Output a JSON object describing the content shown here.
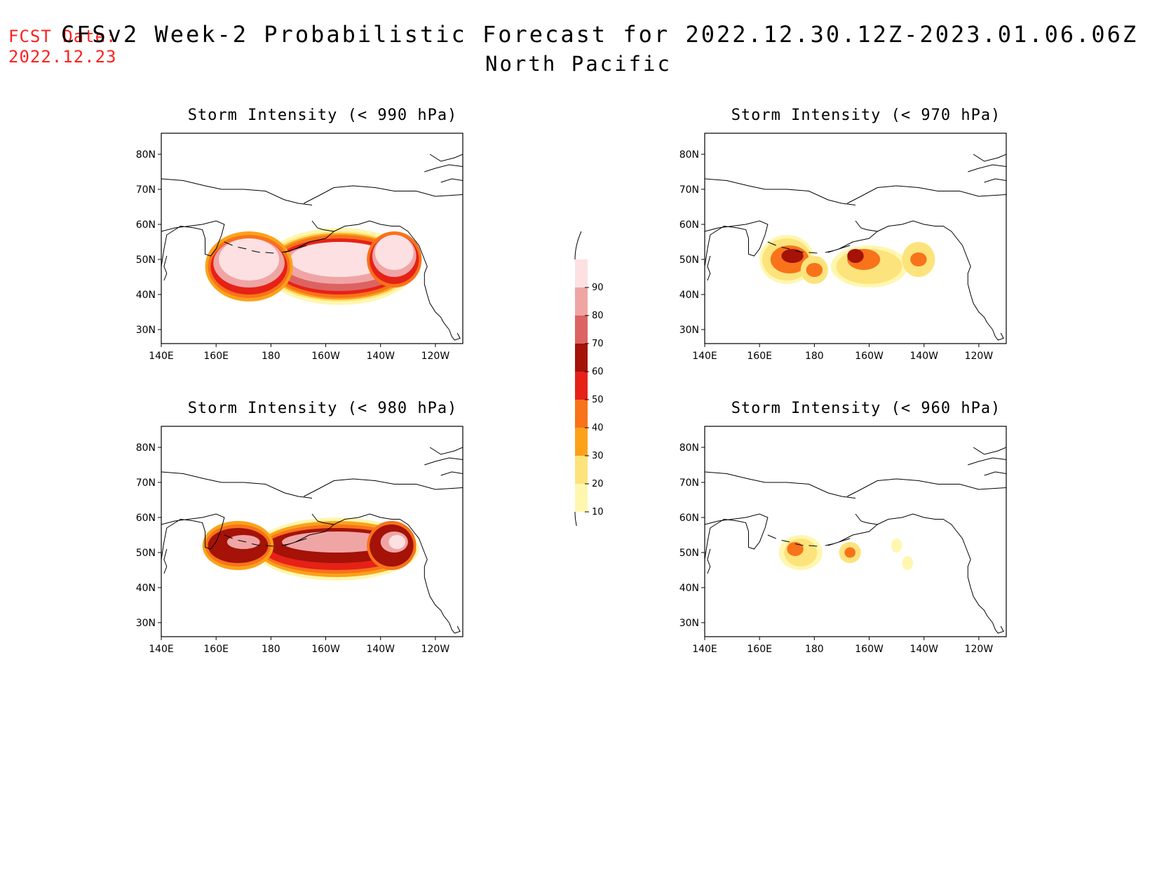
{
  "header": {
    "fcst_label": "FCST Date:",
    "fcst_date": "2022.12.23",
    "title": "CFSv2 Week-2 Probabilistic Forecast for 2022.12.30.12Z-2023.01.06.06Z",
    "subtitle": "North Pacific"
  },
  "axes": {
    "lat_ticks": [
      "80N",
      "70N",
      "60N",
      "50N",
      "40N",
      "30N"
    ],
    "lon_ticks": [
      "140E",
      "160E",
      "180",
      "160W",
      "140W",
      "120W"
    ]
  },
  "colorbar": {
    "levels": [
      "10",
      "20",
      "30",
      "40",
      "50",
      "60",
      "70",
      "80",
      "90"
    ],
    "colors": [
      "#fff7b0",
      "#fde37c",
      "#fba21a",
      "#f8731a",
      "#e62117",
      "#a41208",
      "#dd6363",
      "#f0a5a5",
      "#fce0e2"
    ]
  },
  "panels": [
    {
      "id": "p990",
      "title": "Storm Intensity (< 990 hPa)"
    },
    {
      "id": "p970",
      "title": "Storm Intensity (< 970 hPa)"
    },
    {
      "id": "p980",
      "title": "Storm Intensity (< 980 hPa)"
    },
    {
      "id": "p960",
      "title": "Storm Intensity (< 960 hPa)"
    }
  ]
}
